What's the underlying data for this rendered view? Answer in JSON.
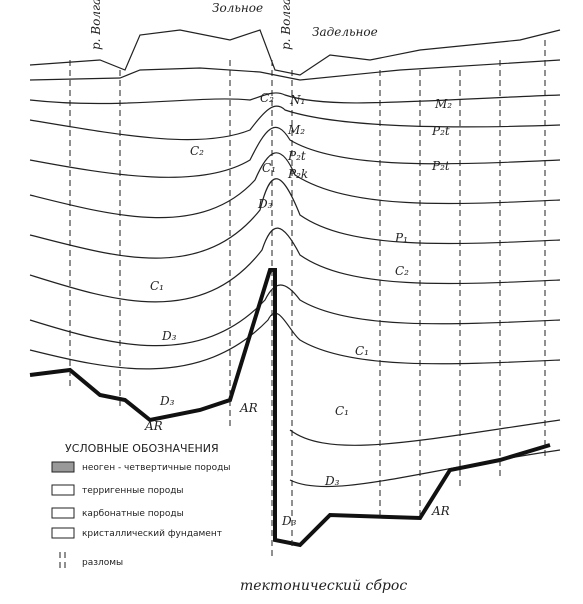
{
  "header": {
    "villages": [
      "Зольное",
      "Задельное"
    ],
    "rivers": [
      "р. Волга",
      "р. Волга"
    ]
  },
  "layer_labels": [
    "N₁",
    "M₂",
    "P₂t",
    "P₂k",
    "C₂",
    "C₁",
    "D₃",
    "C₂",
    "C₁",
    "D₃",
    "D₃",
    "AR",
    "AR",
    "M₂",
    "P₂t",
    "P₂t",
    "P₁",
    "C₂",
    "C₁",
    "C₁",
    "D₃",
    "D₃",
    "AR"
  ],
  "legend": {
    "title": "УСЛОВНЫЕ ОБОЗНАЧЕНИЯ",
    "items": [
      "неоген - четвертичные породы",
      "терригенные породы",
      "карбонатные породы",
      "кристаллический фундамент",
      "разломы"
    ]
  },
  "caption": "тектонический сброс"
}
